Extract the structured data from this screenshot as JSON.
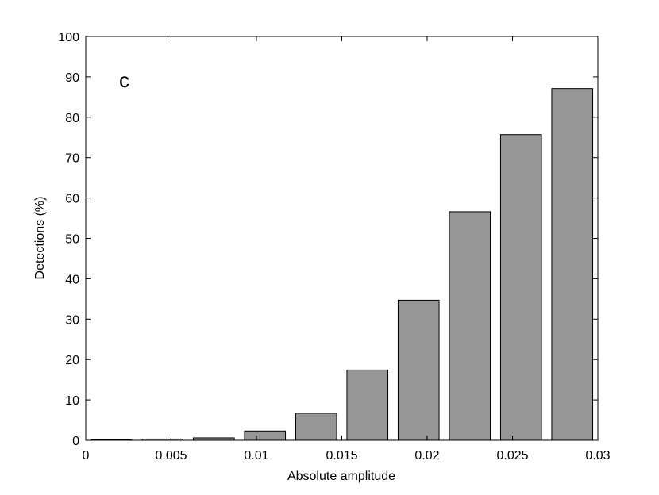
{
  "chart_data": {
    "type": "bar",
    "panel_label": "c",
    "xlabel": "Absolute amplitude",
    "ylabel": "Detections (%)",
    "xlim": [
      0,
      0.03
    ],
    "ylim": [
      0,
      100
    ],
    "xticks": [
      0,
      0.005,
      0.01,
      0.015,
      0.02,
      0.025,
      0.03
    ],
    "xtick_labels": [
      "0",
      "0.005",
      "0.01",
      "0.015",
      "0.02",
      "0.025",
      "0.03"
    ],
    "yticks": [
      0,
      10,
      20,
      30,
      40,
      50,
      60,
      70,
      80,
      90,
      100
    ],
    "ytick_labels": [
      "0",
      "10",
      "20",
      "30",
      "40",
      "50",
      "60",
      "70",
      "80",
      "90",
      "100"
    ],
    "bar_width": 0.0024,
    "x": [
      0.0015,
      0.0045,
      0.0075,
      0.0105,
      0.0135,
      0.0165,
      0.0195,
      0.0225,
      0.0255,
      0.0285
    ],
    "values": [
      0.1,
      0.3,
      0.6,
      2.3,
      6.7,
      17.4,
      34.7,
      56.6,
      75.7,
      87.1
    ],
    "bar_color": "#969696",
    "bar_edge_color": "#000000",
    "grid": false
  }
}
